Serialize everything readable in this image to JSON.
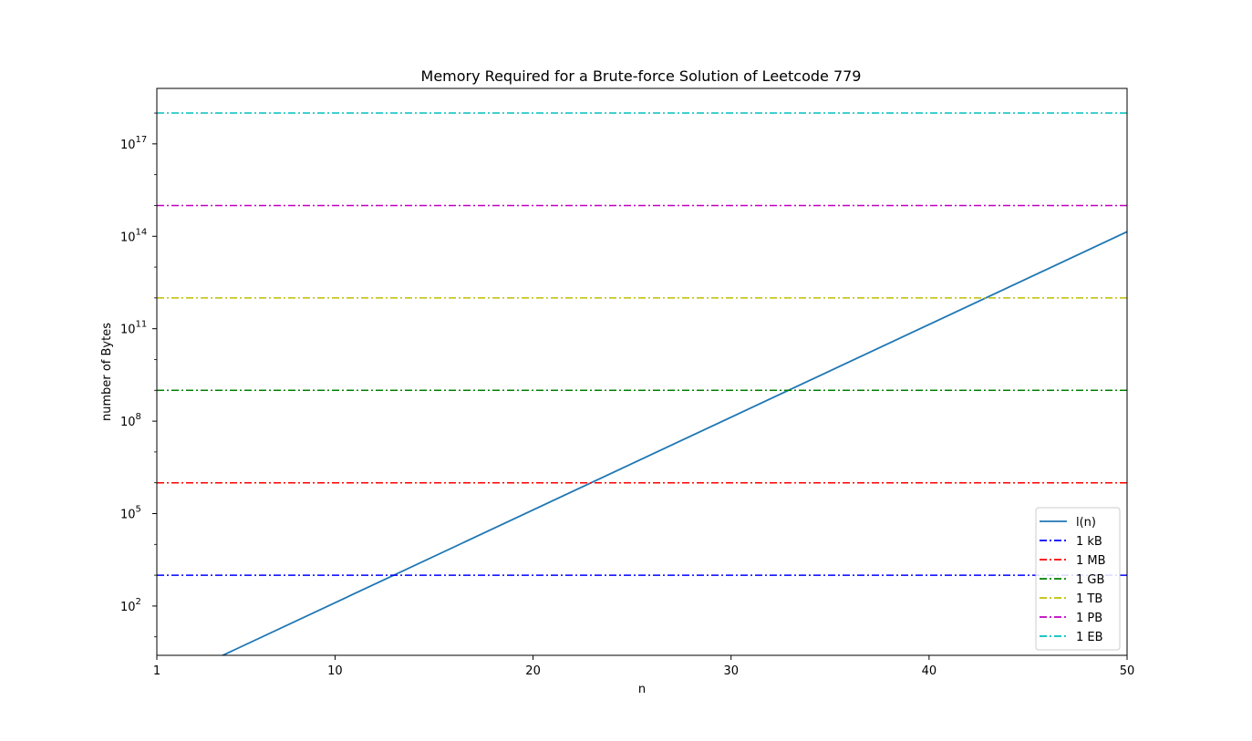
{
  "chart_data": {
    "type": "line",
    "title": "Memory Required for a Brute-force Solution of Leetcode 779",
    "xlabel": "n",
    "ylabel": "number of Bytes",
    "x_scale": "linear",
    "y_scale": "log",
    "xlim": [
      1,
      50
    ],
    "ylim_log10": [
      0.4,
      18.8
    ],
    "xticks": [
      1,
      10,
      20,
      30,
      40,
      50
    ],
    "yticks_exponents": [
      2,
      5,
      8,
      11,
      14,
      17
    ],
    "grid": false,
    "legend_position": "lower-right",
    "series": [
      {
        "name": "l(n)",
        "kind": "line",
        "style": "solid",
        "color": "#1f77b4",
        "formula": "2^n / 8 bytes",
        "x": [
          1,
          50
        ],
        "y": [
          0.25,
          140737488355328
        ]
      },
      {
        "name": "1 kB",
        "kind": "hline",
        "style": "dashdot",
        "color": "#0000ff",
        "y": 1000
      },
      {
        "name": "1 MB",
        "kind": "hline",
        "style": "dashdot",
        "color": "#ff0000",
        "y": 1000000
      },
      {
        "name": "1 GB",
        "kind": "hline",
        "style": "dashdot",
        "color": "#008000",
        "y": 1000000000
      },
      {
        "name": "1 TB",
        "kind": "hline",
        "style": "dashdot",
        "color": "#bfbf00",
        "y": 1000000000000
      },
      {
        "name": "1 PB",
        "kind": "hline",
        "style": "dashdot",
        "color": "#bf00bf",
        "y": 1000000000000000
      },
      {
        "name": "1 EB",
        "kind": "hline",
        "style": "dashdot",
        "color": "#00bfbf",
        "y": 1000000000000000000
      }
    ]
  }
}
